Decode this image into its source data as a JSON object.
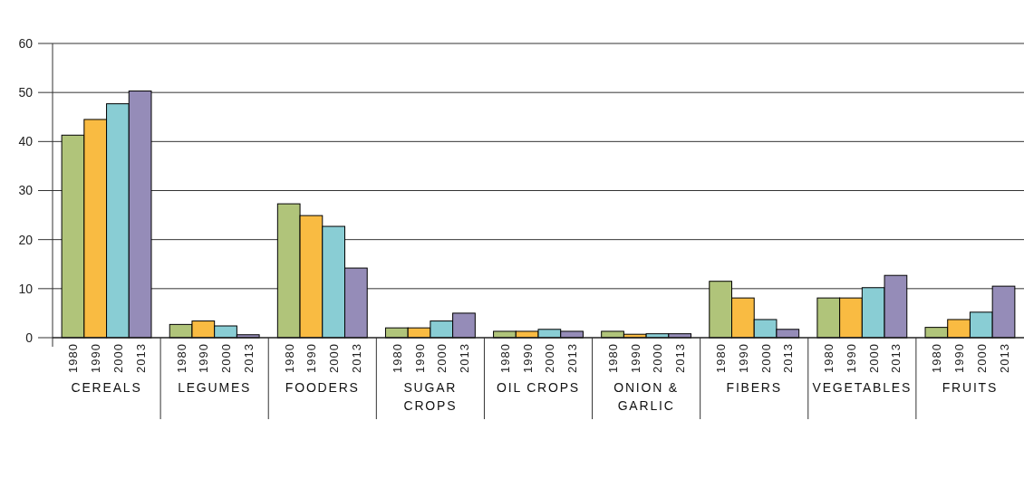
{
  "chart_data": {
    "type": "bar",
    "categories": [
      "CEREALS",
      "LEGUMES",
      "FOODERS",
      "SUGAR CROPS",
      "OIL CROPS",
      "ONION & GARLIC",
      "FIBERS",
      "VEGETABLES",
      "FRUITS"
    ],
    "series": [
      {
        "name": "1980",
        "color": "#b0c47a",
        "values": [
          41.3,
          2.7,
          27.3,
          2.0,
          1.3,
          1.3,
          11.5,
          8.1,
          2.1
        ]
      },
      {
        "name": "1990",
        "color": "#f9bb42",
        "values": [
          44.5,
          3.4,
          24.9,
          2.0,
          1.3,
          0.7,
          8.1,
          8.1,
          3.7
        ]
      },
      {
        "name": "2000",
        "color": "#89cdd4",
        "values": [
          47.7,
          2.4,
          22.7,
          3.4,
          1.7,
          0.8,
          3.7,
          10.2,
          5.2
        ]
      },
      {
        "name": "2013",
        "color": "#958cb8",
        "values": [
          50.3,
          0.6,
          14.2,
          5.0,
          1.3,
          0.8,
          1.7,
          12.7,
          10.5
        ]
      }
    ],
    "ylim": [
      0,
      60
    ],
    "yticks": [
      0,
      10,
      20,
      30,
      40,
      50,
      60
    ],
    "grid": "y"
  }
}
